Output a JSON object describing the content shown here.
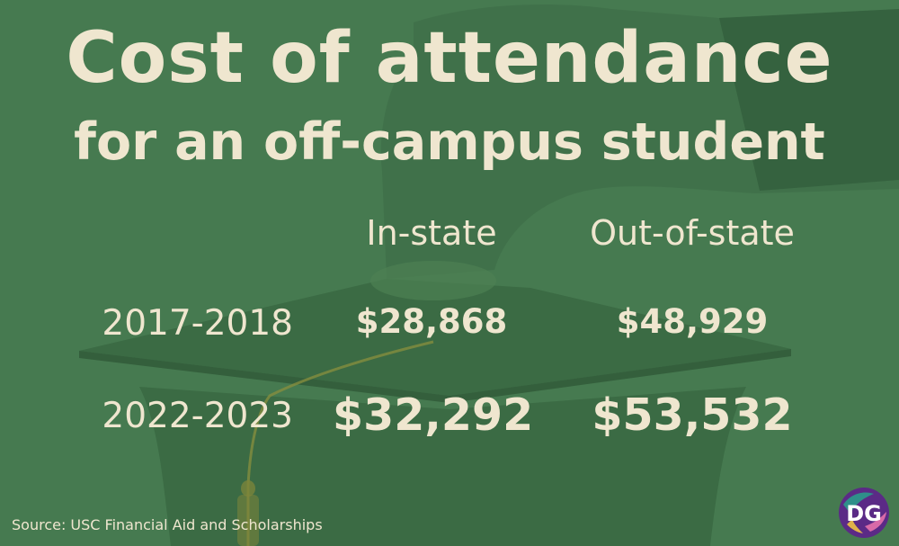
{
  "title": "Cost of attendance",
  "subtitle": "for an off-campus student",
  "columns": [
    "In-state",
    "Out-of-state"
  ],
  "rows": [
    {
      "label": "2017-2018",
      "in_state": "$28,868",
      "out_of_state": "$48,929"
    },
    {
      "label": "2022-2023",
      "in_state": "$32,292",
      "out_of_state": "$53,532"
    }
  ],
  "source": "Source: USC Financial Aid and Scholarships",
  "logo_text": "DG",
  "colors": {
    "background": "#467a50",
    "text": "#efe6cf",
    "cap": "#3a6a43",
    "tassel": "#8a8f3e"
  }
}
